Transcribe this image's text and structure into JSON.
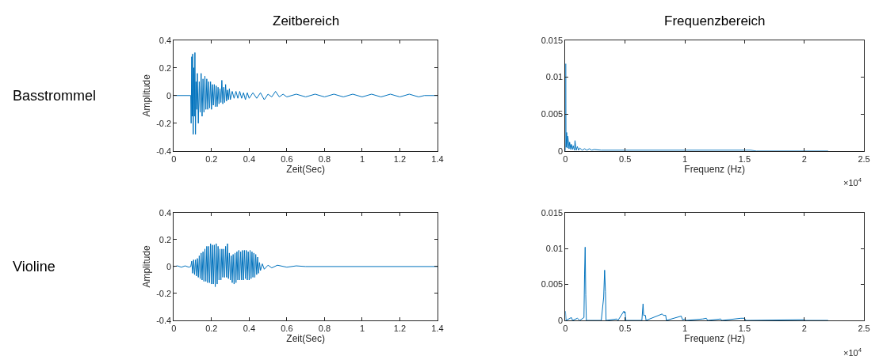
{
  "chart_data": [
    {
      "type": "line",
      "title": "Zeitbereich",
      "xlabel": "Zeit(Sec)",
      "ylabel": "Amplitude",
      "annotations": [
        "Basstrommel"
      ],
      "xlim": [
        0,
        1.4
      ],
      "xticks": [
        0,
        0.2,
        0.4,
        0.6,
        0.8,
        1,
        1.2,
        1.4
      ],
      "ylim": [
        -0.4,
        0.4
      ],
      "yticks": [
        -0.4,
        -0.2,
        0,
        0.2,
        0.4
      ],
      "x": [
        0,
        0.09,
        0.092,
        0.095,
        0.098,
        0.1,
        0.103,
        0.106,
        0.109,
        0.112,
        0.115,
        0.118,
        0.122,
        0.125,
        0.13,
        0.135,
        0.14,
        0.145,
        0.15,
        0.155,
        0.16,
        0.165,
        0.17,
        0.175,
        0.18,
        0.185,
        0.19,
        0.195,
        0.2,
        0.205,
        0.21,
        0.215,
        0.22,
        0.225,
        0.23,
        0.235,
        0.24,
        0.245,
        0.25,
        0.255,
        0.26,
        0.265,
        0.27,
        0.275,
        0.28,
        0.285,
        0.29,
        0.295,
        0.3,
        0.31,
        0.32,
        0.33,
        0.34,
        0.35,
        0.36,
        0.37,
        0.38,
        0.39,
        0.4,
        0.42,
        0.44,
        0.46,
        0.48,
        0.5,
        0.52,
        0.54,
        0.56,
        0.58,
        0.6,
        0.65,
        0.7,
        0.75,
        0.8,
        0.85,
        0.9,
        0.95,
        1.0,
        1.05,
        1.1,
        1.15,
        1.2,
        1.25,
        1.3,
        1.33,
        1.4
      ],
      "series": [
        {
          "color": "#0072bd",
          "values": [
            0,
            0,
            -0.2,
            0.28,
            -0.15,
            0.3,
            -0.28,
            0.2,
            -0.15,
            0.31,
            -0.28,
            0.1,
            -0.1,
            0.16,
            -0.2,
            0.1,
            -0.12,
            0.16,
            -0.15,
            0.12,
            -0.12,
            0.14,
            -0.1,
            0.12,
            -0.1,
            0.1,
            -0.09,
            0.1,
            -0.1,
            0.08,
            -0.07,
            0.08,
            -0.08,
            0.07,
            -0.08,
            0.06,
            -0.06,
            0.05,
            -0.05,
            0.11,
            -0.06,
            0.06,
            -0.05,
            0.08,
            -0.04,
            0.04,
            -0.03,
            0.05,
            -0.03,
            0.03,
            -0.02,
            0.03,
            -0.02,
            0.03,
            -0.02,
            0.02,
            -0.03,
            0.02,
            -0.02,
            0.02,
            -0.02,
            0.02,
            -0.03,
            0.01,
            -0.01,
            0.03,
            -0.01,
            0.01,
            -0.01,
            0.01,
            -0.01,
            0.01,
            -0.01,
            0.01,
            -0.01,
            0.01,
            -0.01,
            0.01,
            -0.01,
            0.01,
            -0.01,
            0.01,
            -0.01,
            0,
            0
          ]
        }
      ]
    },
    {
      "type": "line",
      "title": "Frequenzbereich",
      "xlabel": "Frequenz (Hz)",
      "annotations": [
        "×10$^{4}$"
      ],
      "xlim": [
        0,
        2.5
      ],
      "xticks": [
        0,
        0.5,
        1,
        1.5,
        2,
        2.5
      ],
      "ylim": [
        0,
        0.015
      ],
      "yticks": [
        0,
        0.005,
        0.01,
        0.015
      ],
      "x": [
        0,
        0.002,
        0.005,
        0.01,
        0.015,
        0.02,
        0.03,
        0.035,
        0.045,
        0.05,
        0.06,
        0.065,
        0.075,
        0.08,
        0.09,
        0.1,
        0.11,
        0.12,
        0.14,
        0.16,
        0.18,
        0.2,
        0.22,
        0.24,
        0.3,
        0.5,
        1.0,
        1.5,
        1.55,
        1.6,
        2.2
      ],
      "series": [
        {
          "color": "#0072bd",
          "values": [
            0,
            0.0118,
            0.0005,
            0.0025,
            0.0004,
            0.002,
            0.0003,
            0.0012,
            0.0002,
            0.0009,
            0.0002,
            0.0007,
            0.0001,
            0.0014,
            0.0001,
            0.0006,
            0.0001,
            0.0004,
            0.0001,
            0.0003,
            0.0001,
            0.0003,
            0.0001,
            0.0002,
            0.0001,
            0.0001,
            0.0001,
            0.0001,
            0.0001,
            0,
            0
          ]
        }
      ]
    },
    {
      "type": "line",
      "xlabel": "Zeit(Sec)",
      "ylabel": "Amplitude",
      "annotations": [
        "Violine"
      ],
      "xlim": [
        0,
        1.4
      ],
      "xticks": [
        0,
        0.2,
        0.4,
        0.6,
        0.8,
        1,
        1.2,
        1.4
      ],
      "ylim": [
        -0.4,
        0.4
      ],
      "yticks": [
        -0.4,
        -0.2,
        0,
        0.2,
        0.4
      ],
      "x": [
        0,
        0.02,
        0.04,
        0.06,
        0.08,
        0.09,
        0.095,
        0.1,
        0.105,
        0.11,
        0.115,
        0.12,
        0.125,
        0.13,
        0.135,
        0.14,
        0.145,
        0.15,
        0.155,
        0.16,
        0.165,
        0.17,
        0.175,
        0.18,
        0.185,
        0.19,
        0.195,
        0.2,
        0.205,
        0.21,
        0.215,
        0.22,
        0.225,
        0.23,
        0.235,
        0.24,
        0.245,
        0.25,
        0.255,
        0.26,
        0.265,
        0.27,
        0.275,
        0.28,
        0.285,
        0.29,
        0.295,
        0.3,
        0.305,
        0.31,
        0.315,
        0.32,
        0.325,
        0.33,
        0.335,
        0.34,
        0.345,
        0.35,
        0.355,
        0.36,
        0.365,
        0.37,
        0.375,
        0.38,
        0.385,
        0.39,
        0.395,
        0.4,
        0.405,
        0.41,
        0.415,
        0.42,
        0.425,
        0.43,
        0.435,
        0.44,
        0.445,
        0.45,
        0.455,
        0.46,
        0.47,
        0.48,
        0.5,
        0.52,
        0.55,
        0.6,
        0.65,
        0.7,
        1.4
      ],
      "series": [
        {
          "color": "#0072bd",
          "values": [
            0,
            0.005,
            -0.005,
            0.005,
            -0.005,
            0,
            0.04,
            -0.05,
            0.05,
            -0.06,
            0.05,
            -0.07,
            0.06,
            -0.08,
            0.08,
            -0.09,
            0.1,
            -0.1,
            0.11,
            -0.11,
            0.13,
            -0.11,
            0.15,
            -0.12,
            0.15,
            -0.12,
            0.17,
            -0.13,
            0.16,
            -0.13,
            0.16,
            -0.15,
            0.17,
            -0.13,
            0.15,
            -0.1,
            0.13,
            -0.1,
            0.13,
            -0.08,
            0.13,
            -0.08,
            0.15,
            -0.08,
            0.17,
            -0.09,
            0.1,
            -0.1,
            0.08,
            -0.12,
            0.09,
            -0.13,
            0.1,
            -0.12,
            0.11,
            -0.1,
            0.12,
            -0.1,
            0.11,
            -0.1,
            0.12,
            -0.1,
            0.12,
            -0.09,
            0.12,
            -0.1,
            0.11,
            -0.1,
            0.12,
            -0.09,
            0.11,
            -0.08,
            0.1,
            -0.08,
            0.09,
            -0.06,
            0.07,
            -0.05,
            0.03,
            -0.03,
            0.02,
            -0.02,
            0.01,
            -0.01,
            0.01,
            -0.005,
            0.005,
            0,
            0
          ]
        }
      ]
    },
    {
      "type": "line",
      "xlabel": "Frequenz (Hz)",
      "annotations": [
        "×10$^{4}$"
      ],
      "xlim": [
        0,
        2.5
      ],
      "xticks": [
        0,
        0.5,
        1,
        1.5,
        2,
        2.5
      ],
      "ylim": [
        0,
        0.015
      ],
      "yticks": [
        0,
        0.005,
        0.01,
        0.015
      ],
      "x": [
        0,
        0.005,
        0.05,
        0.06,
        0.1,
        0.12,
        0.155,
        0.16,
        0.165,
        0.17,
        0.175,
        0.3,
        0.32,
        0.328,
        0.335,
        0.34,
        0.43,
        0.44,
        0.49,
        0.495,
        0.5,
        0.505,
        0.64,
        0.65,
        0.655,
        0.67,
        0.675,
        0.81,
        0.82,
        0.84,
        0.845,
        0.97,
        0.98,
        1.0,
        1.01,
        1.15,
        1.18,
        1.19,
        1.3,
        1.31,
        1.47,
        1.5,
        1.51,
        2.0,
        2.01,
        2.2
      ],
      "series": [
        {
          "color": "#0072bd",
          "values": [
            0.0013,
            0,
            0.0004,
            0,
            0.0003,
            0,
            0.0004,
            0.0064,
            0.0102,
            0.0036,
            0,
            0,
            0.0032,
            0.007,
            0.004,
            0,
            0.0002,
            0,
            0.0013,
            0.001,
            0.0012,
            0,
            0,
            0.0023,
            0.0007,
            0.0007,
            0,
            0.0009,
            0.0007,
            0.0007,
            0,
            0.0006,
            0.0001,
            0.0002,
            0,
            0.0002,
            0.0003,
            0,
            0.0002,
            0,
            0.0003,
            0.0003,
            0,
            0.0001,
            0,
            0
          ]
        }
      ]
    }
  ]
}
